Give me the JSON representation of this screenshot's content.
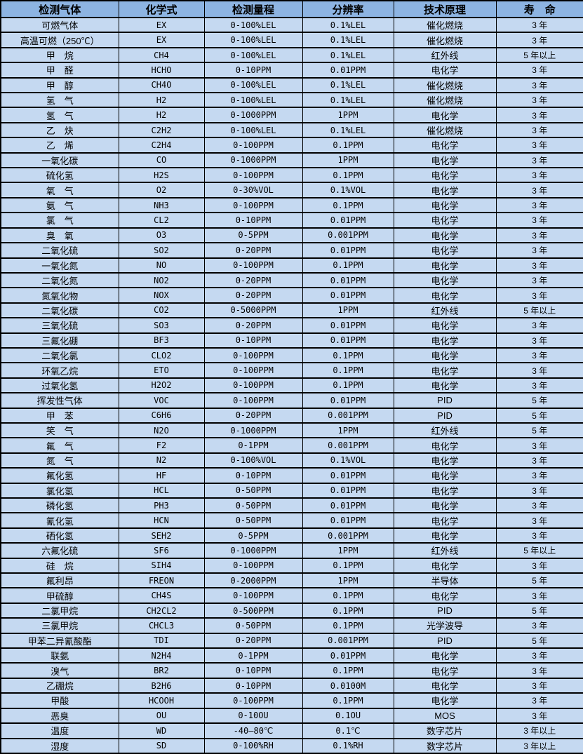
{
  "colors": {
    "header_bg": "#8DB4E2",
    "row_bg": "#C5D9F1",
    "border": "#000000",
    "text": "#000000"
  },
  "table": {
    "headers": [
      "检测气体",
      "化学式",
      "检测量程",
      "分辨率",
      "技术原理",
      "寿　命"
    ],
    "rows": [
      [
        "可燃气体",
        "EX",
        "0-100%LEL",
        "0.1%LEL",
        "催化燃烧",
        "3 年"
      ],
      [
        "高温可燃（250℃）",
        "EX",
        "0-100%LEL",
        "0.1%LEL",
        "催化燃烧",
        "3 年"
      ],
      [
        "甲　烷",
        "CH4",
        "0-100%LEL",
        "0.1%LEL",
        "红外线",
        "5 年以上"
      ],
      [
        "甲　醛",
        "HCHO",
        "0-10PPM",
        "0.01PPM",
        "电化学",
        "3 年"
      ],
      [
        "甲　醇",
        "CH4O",
        "0-100%LEL",
        "0.1%LEL",
        "催化燃烧",
        "3 年"
      ],
      [
        "氢　气",
        "H2",
        "0-100%LEL",
        "0.1%LEL",
        "催化燃烧",
        "3 年"
      ],
      [
        "氢　气",
        "H2",
        "0-1000PPM",
        "1PPM",
        "电化学",
        "3 年"
      ],
      [
        "乙　炔",
        "C2H2",
        "0-100%LEL",
        "0.1%LEL",
        "催化燃烧",
        "3 年"
      ],
      [
        "乙　烯",
        "C2H4",
        "0-100PPM",
        "0.1PPM",
        "电化学",
        "3 年"
      ],
      [
        "一氧化碳",
        "CO",
        "0-1000PPM",
        "1PPM",
        "电化学",
        "3 年"
      ],
      [
        "硫化氢",
        "H2S",
        "0-100PPM",
        "0.1PPM",
        "电化学",
        "3 年"
      ],
      [
        "氧　气",
        "O2",
        "0-30%VOL",
        "0.1%VOL",
        "电化学",
        "3 年"
      ],
      [
        "氨　气",
        "NH3",
        "0-100PPM",
        "0.1PPM",
        "电化学",
        "3 年"
      ],
      [
        "氯　气",
        "CL2",
        "0-10PPM",
        "0.01PPM",
        "电化学",
        "3 年"
      ],
      [
        "臭　氧",
        "O3",
        "0-5PPM",
        "0.001PPM",
        "电化学",
        "3 年"
      ],
      [
        "二氧化硫",
        "SO2",
        "0-20PPM",
        "0.01PPM",
        "电化学",
        "3 年"
      ],
      [
        "一氧化氮",
        "NO",
        "0-100PPM",
        "0.1PPM",
        "电化学",
        "3 年"
      ],
      [
        "二氧化氮",
        "NO2",
        "0-20PPM",
        "0.01PPM",
        "电化学",
        "3 年"
      ],
      [
        "氮氧化物",
        "NOX",
        "0-20PPM",
        "0.01PPM",
        "电化学",
        "3 年"
      ],
      [
        "二氧化碳",
        "CO2",
        "0-5000PPM",
        "1PPM",
        "红外线",
        "5 年以上"
      ],
      [
        "三氧化硫",
        "SO3",
        "0-20PPM",
        "0.01PPM",
        "电化学",
        "3 年"
      ],
      [
        "三氟化硼",
        "BF3",
        "0-10PPM",
        "0.01PPM",
        "电化学",
        "3 年"
      ],
      [
        "二氧化氯",
        "CLO2",
        "0-100PPM",
        "0.1PPM",
        "电化学",
        "3 年"
      ],
      [
        "环氧乙烷",
        "ETO",
        "0-100PPM",
        "0.1PPM",
        "电化学",
        "3 年"
      ],
      [
        "过氧化氢",
        "H2O2",
        "0-100PPM",
        "0.1PPM",
        "电化学",
        "3 年"
      ],
      [
        "挥发性气体",
        "VOC",
        "0-100PPM",
        "0.01PPM",
        "PID",
        "5 年"
      ],
      [
        "甲　苯",
        "C6H6",
        "0-20PPM",
        "0.001PPM",
        "PID",
        "5 年"
      ],
      [
        "笑　气",
        "N2O",
        "0-1000PPM",
        "1PPM",
        "红外线",
        "5 年"
      ],
      [
        "氟　气",
        "F2",
        "0-1PPM",
        "0.001PPM",
        "电化学",
        "3 年"
      ],
      [
        "氮　气",
        "N2",
        "0-100%VOL",
        "0.1%VOL",
        "电化学",
        "3 年"
      ],
      [
        "氟化氢",
        "HF",
        "0-10PPM",
        "0.01PPM",
        "电化学",
        "3 年"
      ],
      [
        "氯化氢",
        "HCL",
        "0-50PPM",
        "0.01PPM",
        "电化学",
        "3 年"
      ],
      [
        "磷化氢",
        "PH3",
        "0-50PPM",
        "0.01PPM",
        "电化学",
        "3 年"
      ],
      [
        "氰化氢",
        "HCN",
        "0-50PPM",
        "0.01PPM",
        "电化学",
        "3 年"
      ],
      [
        "硒化氢",
        "SEH2",
        "0-5PPM",
        "0.001PPM",
        "电化学",
        "3 年"
      ],
      [
        "六氟化硫",
        "SF6",
        "0-1000PPM",
        "1PPM",
        "红外线",
        "5 年以上"
      ],
      [
        "硅　烷",
        "SIH4",
        "0-100PPM",
        "0.1PPM",
        "电化学",
        "3 年"
      ],
      [
        "氟利昂",
        "FREON",
        "0-2000PPM",
        "1PPM",
        "半导体",
        "5 年"
      ],
      [
        "甲硫醇",
        "CH4S",
        "0-100PPM",
        "0.1PPM",
        "电化学",
        "3 年"
      ],
      [
        "二氯甲烷",
        "CH2CL2",
        "0-500PPM",
        "0.1PPM",
        "PID",
        "5 年"
      ],
      [
        "三氯甲烷",
        "CHCL3",
        "0-50PPM",
        "0.1PPM",
        "光学波导",
        "3 年"
      ],
      [
        "甲苯二异氰酸酯",
        "TDI",
        "0-20PPM",
        "0.001PPM",
        "PID",
        "5 年"
      ],
      [
        "联氨",
        "N2H4",
        "0-1PPM",
        "0.01PPM",
        "电化学",
        "3 年"
      ],
      [
        "溴气",
        "BR2",
        "0-10PPM",
        "0.1PPM",
        "电化学",
        "3 年"
      ],
      [
        "乙硼烷",
        "B2H6",
        "0-10PPM",
        "0.0100M",
        "电化学",
        "3 年"
      ],
      [
        "甲酸",
        "HCOOH",
        "0-100PPM",
        "0.1PPM",
        "电化学",
        "3 年"
      ],
      [
        "恶臭",
        "OU",
        "0-10OU",
        "0.1OU",
        "MOS",
        "3 年"
      ],
      [
        "温度",
        "WD",
        "-40—80℃",
        "0.1℃",
        "数字芯片",
        "3 年以上"
      ],
      [
        "湿度",
        "SD",
        "0-100%RH",
        "0.1%RH",
        "数字芯片",
        "3 年以上"
      ]
    ]
  }
}
